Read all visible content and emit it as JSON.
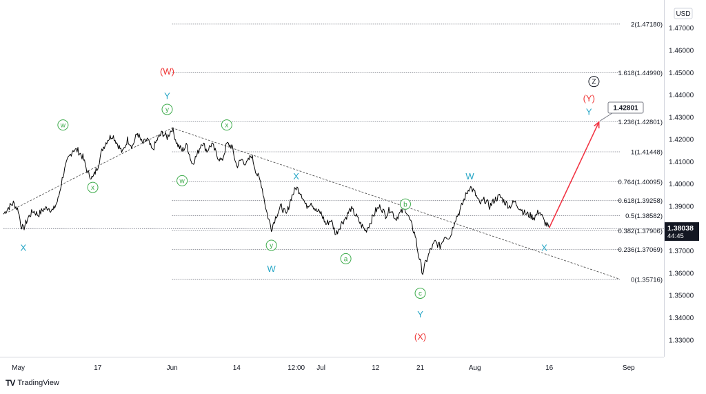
{
  "chart_data": {
    "type": "line",
    "currency": "USD",
    "y_ticks": [
      "1.47000",
      "1.46000",
      "1.45000",
      "1.44000",
      "1.43000",
      "1.42000",
      "1.41000",
      "1.40000",
      "1.39000",
      "1.38000",
      "1.37000",
      "1.36000",
      "1.35000",
      "1.34000",
      "1.33000"
    ],
    "y_tick_values": [
      1.47,
      1.46,
      1.45,
      1.44,
      1.43,
      1.42,
      1.41,
      1.4,
      1.39,
      1.38,
      1.37,
      1.36,
      1.35,
      1.34,
      1.33
    ],
    "ylim": [
      1.3225,
      1.4795
    ],
    "x_ticks": [
      {
        "label": "May",
        "day": 0
      },
      {
        "label": "17",
        "day": 16
      },
      {
        "label": "Jun",
        "day": 31
      },
      {
        "label": "14",
        "day": 44
      },
      {
        "label": "12:00",
        "day": 56
      },
      {
        "label": "Jul",
        "day": 61
      },
      {
        "label": "12",
        "day": 72
      },
      {
        "label": "21",
        "day": 81
      },
      {
        "label": "Aug",
        "day": 92
      },
      {
        "label": "16",
        "day": 107
      },
      {
        "label": "Sep",
        "day": 123
      }
    ],
    "xlim": [
      -3,
      129
    ],
    "price_path": [
      [
        -3,
        1.3865
      ],
      [
        -2,
        1.3895
      ],
      [
        -1,
        1.3915
      ],
      [
        0,
        1.3882
      ],
      [
        0.5,
        1.382
      ],
      [
        1,
        1.3798
      ],
      [
        2,
        1.385
      ],
      [
        3,
        1.388
      ],
      [
        4,
        1.3862
      ],
      [
        5,
        1.3885
      ],
      [
        6,
        1.3895
      ],
      [
        7,
        1.388
      ],
      [
        8,
        1.393
      ],
      [
        9,
        1.404
      ],
      [
        10,
        1.411
      ],
      [
        11,
        1.4155
      ],
      [
        12,
        1.415
      ],
      [
        13,
        1.412
      ],
      [
        14,
        1.405
      ],
      [
        15,
        1.4025
      ],
      [
        16,
        1.408
      ],
      [
        17,
        1.416
      ],
      [
        18,
        1.42
      ],
      [
        19,
        1.422
      ],
      [
        20,
        1.418
      ],
      [
        21,
        1.414
      ],
      [
        22,
        1.42
      ],
      [
        23,
        1.417
      ],
      [
        24,
        1.423
      ],
      [
        25,
        1.418
      ],
      [
        26,
        1.42
      ],
      [
        27,
        1.415
      ],
      [
        28,
        1.42
      ],
      [
        29,
        1.423
      ],
      [
        30,
        1.421
      ],
      [
        31,
        1.425
      ],
      [
        32,
        1.418
      ],
      [
        33,
        1.415
      ],
      [
        34,
        1.4175
      ],
      [
        35,
        1.409
      ],
      [
        36,
        1.413
      ],
      [
        37,
        1.419
      ],
      [
        38,
        1.415
      ],
      [
        39,
        1.418
      ],
      [
        40,
        1.413
      ],
      [
        41,
        1.41
      ],
      [
        42,
        1.418
      ],
      [
        43,
        1.417
      ],
      [
        44,
        1.408
      ],
      [
        45,
        1.411
      ],
      [
        46,
        1.409
      ],
      [
        47,
        1.413
      ],
      [
        48,
        1.405
      ],
      [
        49,
        1.4
      ],
      [
        50,
        1.388
      ],
      [
        51,
        1.38
      ],
      [
        52,
        1.386
      ],
      [
        53,
        1.39
      ],
      [
        54,
        1.386
      ],
      [
        55,
        1.394
      ],
      [
        56,
        1.3985
      ],
      [
        57,
        1.396
      ],
      [
        58,
        1.39
      ],
      [
        59,
        1.392
      ],
      [
        60,
        1.388
      ],
      [
        61,
        1.387
      ],
      [
        62,
        1.382
      ],
      [
        63,
        1.384
      ],
      [
        64,
        1.3775
      ],
      [
        65,
        1.382
      ],
      [
        66,
        1.385
      ],
      [
        67,
        1.389
      ],
      [
        68,
        1.386
      ],
      [
        69,
        1.382
      ],
      [
        70,
        1.379
      ],
      [
        71,
        1.383
      ],
      [
        72,
        1.388
      ],
      [
        73,
        1.39
      ],
      [
        74,
        1.386
      ],
      [
        75,
        1.389
      ],
      [
        76,
        1.3845
      ],
      [
        77,
        1.387
      ],
      [
        78,
        1.389
      ],
      [
        79,
        1.383
      ],
      [
        80,
        1.377
      ],
      [
        80.5,
        1.37
      ],
      [
        81,
        1.365
      ],
      [
        81.5,
        1.36
      ],
      [
        82,
        1.364
      ],
      [
        83,
        1.37
      ],
      [
        84,
        1.374
      ],
      [
        85,
        1.372
      ],
      [
        86,
        1.377
      ],
      [
        87,
        1.376
      ],
      [
        88,
        1.384
      ],
      [
        89,
        1.388
      ],
      [
        90,
        1.394
      ],
      [
        91,
        1.399
      ],
      [
        92,
        1.396
      ],
      [
        93,
        1.391
      ],
      [
        94,
        1.393
      ],
      [
        95,
        1.39
      ],
      [
        96,
        1.393
      ],
      [
        97,
        1.3945
      ],
      [
        98,
        1.392
      ],
      [
        99,
        1.39
      ],
      [
        100,
        1.392
      ],
      [
        101,
        1.3895
      ],
      [
        102,
        1.387
      ],
      [
        103,
        1.386
      ],
      [
        104,
        1.385
      ],
      [
        105,
        1.388
      ],
      [
        106,
        1.383
      ],
      [
        107,
        1.3804
      ]
    ],
    "last_price": "1.38038",
    "countdown": "44:45",
    "fib_levels": [
      {
        "label": "2(1.47180)",
        "value": 1.4718
      },
      {
        "label": "1.618(1.44990)",
        "value": 1.4499
      },
      {
        "label": "1.236(1.42801)",
        "value": 1.42801
      },
      {
        "label": "1(1.41448)",
        "value": 1.41448
      },
      {
        "label": "0.764(1.40095)",
        "value": 1.40095
      },
      {
        "label": "0.618(1.39258)",
        "value": 1.39258
      },
      {
        "label": "0.5(1.38582)",
        "value": 1.38582
      },
      {
        "label": "0.382(1.37906)",
        "value": 1.37906
      },
      {
        "label": "0.236(1.37069)",
        "value": 1.37069
      },
      {
        "label": "0(1.35716)",
        "value": 1.35716
      }
    ],
    "fib_start_day": 31,
    "extra_level": 1.38,
    "target_label": "1.42801",
    "trendlines": [
      {
        "from": [
          -2,
          1.3875
        ],
        "to": [
          31,
          1.4252
        ]
      },
      {
        "from": [
          31,
          1.4252
        ],
        "to": [
          121,
          1.3575
        ]
      }
    ],
    "forecast_arrow": {
      "from": [
        107,
        1.3804
      ],
      "to": [
        117,
        1.4278
      ]
    },
    "wave_labels": [
      {
        "text": "(W)",
        "day": 30,
        "value": 1.4505,
        "color": "#ef3434",
        "style": "plain"
      },
      {
        "text": "Y",
        "day": 30,
        "value": 1.4395,
        "color": "#26a6c6",
        "style": "plain"
      },
      {
        "text": "y",
        "day": 30,
        "value": 1.4335,
        "color": "#3cab4a",
        "style": "circle"
      },
      {
        "text": "w",
        "day": 9,
        "value": 1.4265,
        "color": "#3cab4a",
        "style": "circle"
      },
      {
        "text": "x",
        "day": 15,
        "value": 1.3985,
        "color": "#3cab4a",
        "style": "circle"
      },
      {
        "text": "X",
        "day": 1,
        "value": 1.3715,
        "color": "#26a6c6",
        "style": "plain"
      },
      {
        "text": "w",
        "day": 33,
        "value": 1.4015,
        "color": "#3cab4a",
        "style": "circle"
      },
      {
        "text": "x",
        "day": 42,
        "value": 1.4265,
        "color": "#3cab4a",
        "style": "circle"
      },
      {
        "text": "X",
        "day": 56,
        "value": 1.4035,
        "color": "#26a6c6",
        "style": "plain"
      },
      {
        "text": "y",
        "day": 51,
        "value": 1.3725,
        "color": "#3cab4a",
        "style": "circle"
      },
      {
        "text": "W",
        "day": 51,
        "value": 1.362,
        "color": "#26a6c6",
        "style": "plain"
      },
      {
        "text": "a",
        "day": 66,
        "value": 1.3665,
        "color": "#3cab4a",
        "style": "circle"
      },
      {
        "text": "b",
        "day": 78,
        "value": 1.391,
        "color": "#3cab4a",
        "style": "circle"
      },
      {
        "text": "c",
        "day": 81,
        "value": 1.351,
        "color": "#3cab4a",
        "style": "circle"
      },
      {
        "text": "Y",
        "day": 81,
        "value": 1.3415,
        "color": "#26a6c6",
        "style": "plain"
      },
      {
        "text": "(X)",
        "day": 81,
        "value": 1.3315,
        "color": "#ef3434",
        "style": "plain"
      },
      {
        "text": "W",
        "day": 91,
        "value": 1.4035,
        "color": "#26a6c6",
        "style": "plain"
      },
      {
        "text": "X",
        "day": 106,
        "value": 1.3715,
        "color": "#26a6c6",
        "style": "plain"
      },
      {
        "text": "Y",
        "day": 115,
        "value": 1.4325,
        "color": "#26a6c6",
        "style": "plain"
      },
      {
        "text": "(Y)",
        "day": 115,
        "value": 1.4385,
        "color": "#ef3434",
        "style": "plain"
      },
      {
        "text": "Z",
        "day": 116,
        "value": 1.446,
        "color": "#131722",
        "style": "circle"
      }
    ]
  },
  "brand": {
    "name": "TradingView",
    "logo": "TV"
  }
}
